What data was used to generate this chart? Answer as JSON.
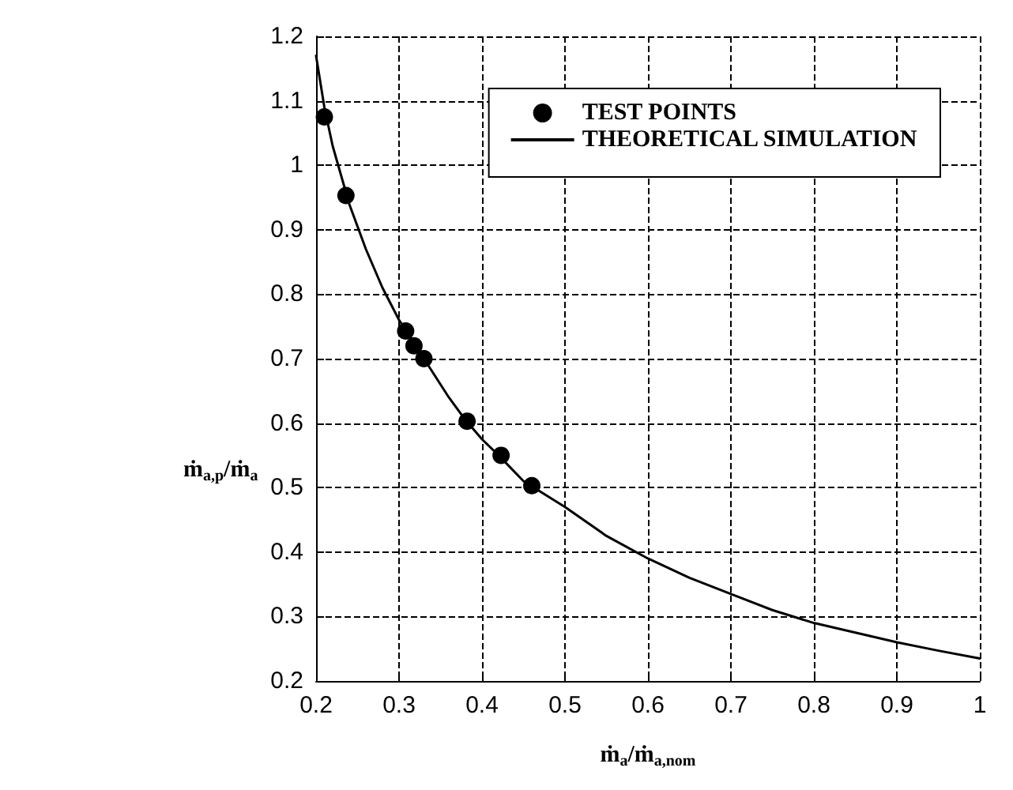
{
  "chart_data": {
    "type": "scatter",
    "xlabel": "ṁ$_{a}$/ṁ$_{a,nom}$",
    "ylabel": "ṁ$_{a,p}$/ṁ$_{a}$",
    "xlim": [
      0.2,
      1
    ],
    "xticks": [
      0.2,
      0.3,
      0.4,
      0.5,
      0.6,
      0.7,
      0.8,
      0.9,
      1
    ],
    "ylim": [
      0.2,
      1.2
    ],
    "yticks": [
      0.2,
      0.3,
      0.4,
      0.5,
      0.6,
      0.7,
      0.8,
      0.9,
      1,
      1.1,
      1.2
    ],
    "grid": true,
    "legend": "top right",
    "series": [
      {
        "name": "TEST POINTS",
        "marker": "circle",
        "color": "#000000",
        "x": [
          0.21,
          0.236,
          0.308,
          0.318,
          0.33,
          0.382,
          0.423,
          0.46
        ],
        "values": [
          1.075,
          0.953,
          0.743,
          0.72,
          0.7,
          0.603,
          0.55,
          0.503
        ]
      },
      {
        "name": "THEORETICAL SIMULATION",
        "type": "line",
        "line_style": "solid",
        "color": "#000000",
        "x": [
          0.2,
          0.21,
          0.22,
          0.24,
          0.26,
          0.28,
          0.3,
          0.33,
          0.36,
          0.38,
          0.4,
          0.42,
          0.45,
          0.5,
          0.55,
          0.6,
          0.65,
          0.7,
          0.75,
          0.8,
          0.85,
          0.9,
          0.95,
          1.0
        ],
        "values": [
          1.17,
          1.09,
          1.03,
          0.94,
          0.87,
          0.81,
          0.76,
          0.7,
          0.64,
          0.605,
          0.575,
          0.55,
          0.51,
          0.47,
          0.425,
          0.39,
          0.36,
          0.335,
          0.31,
          0.29,
          0.275,
          0.26,
          0.247,
          0.235
        ]
      }
    ]
  }
}
